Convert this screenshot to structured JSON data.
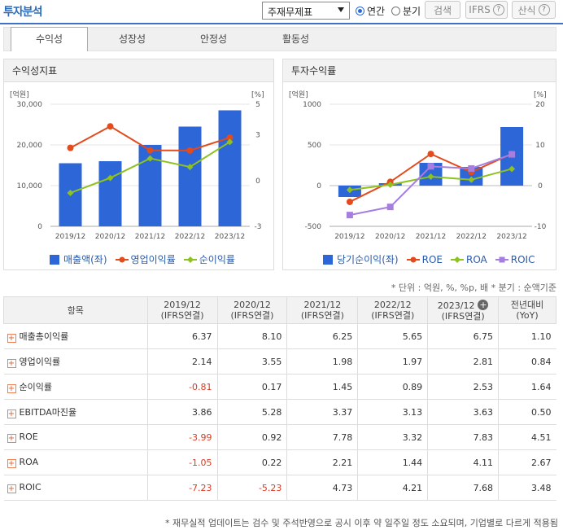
{
  "header": {
    "title": "투자분석",
    "select_value": "주재무제표",
    "radio_annual": "연간",
    "radio_quarter": "분기",
    "search_label": "검색",
    "ifrs_label": "IFRS",
    "calc_label": "산식"
  },
  "tabs": [
    "수익성",
    "성장성",
    "안정성",
    "활동성"
  ],
  "chart_left": {
    "panel_title": "수익성지표",
    "left_unit": "[억원]",
    "right_unit": "[%]",
    "legend": [
      "매출액(좌)",
      "영업이익률",
      "순이익률"
    ],
    "left_ticks": [
      "30,000",
      "20,000",
      "10,000",
      "0"
    ],
    "right_ticks": [
      "5",
      "3",
      "0",
      "-3"
    ]
  },
  "chart_right": {
    "panel_title": "투자수익률",
    "left_unit": "[억원]",
    "right_unit": "[%]",
    "legend": [
      "당기순이익(좌)",
      "ROE",
      "ROA",
      "ROIC"
    ],
    "left_ticks": [
      "1000",
      "500",
      "0",
      "-500"
    ],
    "right_ticks": [
      "20",
      "10",
      "0",
      "-10"
    ]
  },
  "chart_data": [
    {
      "type": "bar",
      "title": "수익성지표",
      "categories": [
        "2019/12",
        "2020/12",
        "2021/12",
        "2022/12",
        "2023/12"
      ],
      "ylim_left": [
        0,
        30000
      ],
      "ylim_right": [
        -3,
        5
      ],
      "series": [
        {
          "name": "매출액(좌)",
          "type": "bar",
          "axis": "left",
          "values": [
            15500,
            16000,
            20000,
            24500,
            28500
          ],
          "color": "#2d66d6"
        },
        {
          "name": "영업이익률",
          "type": "line",
          "axis": "right",
          "values": [
            2.14,
            3.55,
            1.98,
            1.97,
            2.81
          ],
          "color": "#e34a1c"
        },
        {
          "name": "순이익률",
          "type": "line",
          "axis": "right",
          "values": [
            -0.81,
            0.17,
            1.45,
            0.89,
            2.53
          ],
          "color": "#8dc21f"
        }
      ]
    },
    {
      "type": "bar",
      "title": "투자수익률",
      "categories": [
        "2019/12",
        "2020/12",
        "2021/12",
        "2022/12",
        "2023/12"
      ],
      "ylim_left": [
        -500,
        1000
      ],
      "ylim_right": [
        -10,
        20
      ],
      "series": [
        {
          "name": "당기순이익(좌)",
          "type": "bar",
          "axis": "left",
          "values": [
            -140,
            30,
            280,
            230,
            720
          ],
          "color": "#2d66d6"
        },
        {
          "name": "ROE",
          "type": "line",
          "axis": "right",
          "values": [
            -3.99,
            0.92,
            7.78,
            3.32,
            7.83
          ],
          "color": "#e34a1c"
        },
        {
          "name": "ROA",
          "type": "line",
          "axis": "right",
          "values": [
            -1.05,
            0.22,
            2.21,
            1.44,
            4.11
          ],
          "color": "#8dc21f"
        },
        {
          "name": "ROIC",
          "type": "line",
          "axis": "right",
          "values": [
            -7.23,
            -5.23,
            4.73,
            4.21,
            7.68
          ],
          "color": "#a57ee0"
        }
      ]
    }
  ],
  "units_note": "* 단위 : 억원, %, %p, 배      * 분기 : 순액기준",
  "table": {
    "headers": [
      "항목",
      "2019/12\n(IFRS연결)",
      "2020/12\n(IFRS연결)",
      "2021/12\n(IFRS연결)",
      "2022/12\n(IFRS연결)",
      "2023/12\n(IFRS연결)",
      "전년대비\n(YoY)"
    ],
    "rows": [
      {
        "name": "매출총이익률",
        "values": [
          "6.37",
          "8.10",
          "6.25",
          "5.65",
          "6.75",
          "1.10"
        ]
      },
      {
        "name": "영업이익률",
        "values": [
          "2.14",
          "3.55",
          "1.98",
          "1.97",
          "2.81",
          "0.84"
        ]
      },
      {
        "name": "순이익률",
        "values": [
          "-0.81",
          "0.17",
          "1.45",
          "0.89",
          "2.53",
          "1.64"
        ]
      },
      {
        "name": "EBITDA마진율",
        "values": [
          "3.86",
          "5.28",
          "3.37",
          "3.13",
          "3.63",
          "0.50"
        ]
      },
      {
        "name": "ROE",
        "values": [
          "-3.99",
          "0.92",
          "7.78",
          "3.32",
          "7.83",
          "4.51"
        ]
      },
      {
        "name": "ROA",
        "values": [
          "-1.05",
          "0.22",
          "2.21",
          "1.44",
          "4.11",
          "2.67"
        ]
      },
      {
        "name": "ROIC",
        "values": [
          "-7.23",
          "-5.23",
          "4.73",
          "4.21",
          "7.68",
          "3.48"
        ]
      }
    ]
  },
  "footnote": "* 재무실적 업데이트는 검수 및 주석반영으로 공시 이후 약 일주일 정도 소요되며, 기업별로 다르게 적용됨"
}
